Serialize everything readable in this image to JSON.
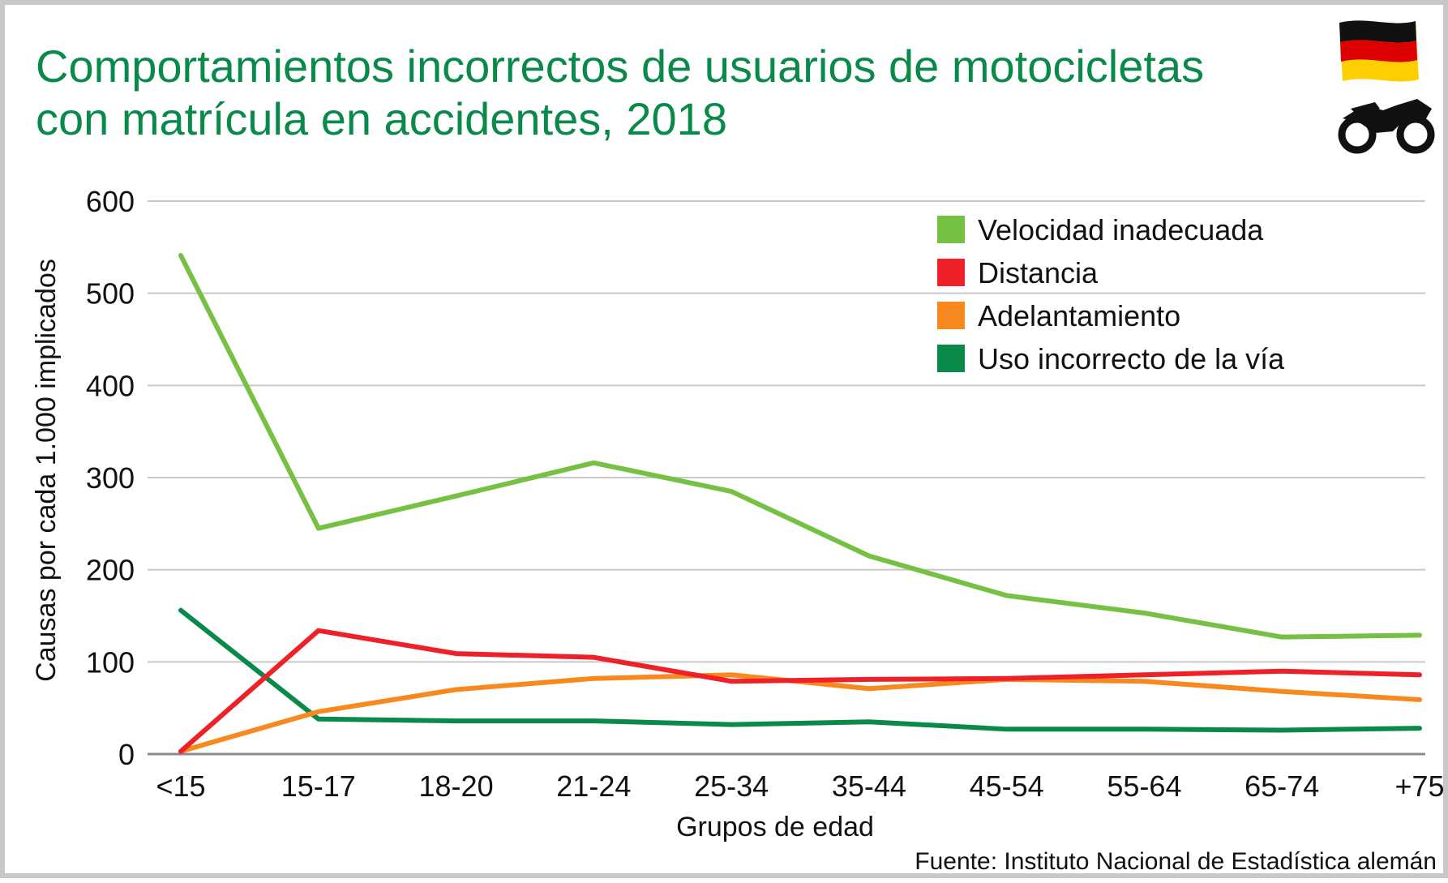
{
  "chart_data": {
    "type": "line",
    "title": "Comportamientos incorrectos de usuarios de motocicletas con matrícula en accidentes, 2018",
    "title_lines": [
      "Comportamientos incorrectos de usuarios de motocicletas",
      "con matrícula en accidentes, 2018"
    ],
    "xlabel": "Grupos de edad",
    "ylabel": "Causas por cada 1.000 implicados",
    "ylim": [
      0,
      600
    ],
    "yticks": [
      "0",
      "100",
      "200",
      "300",
      "400",
      "500",
      "600"
    ],
    "grid": true,
    "legend_position": "top-right",
    "categories": [
      "<15",
      "15-17",
      "18-20",
      "21-24",
      "25-34",
      "35-44",
      "45-54",
      "55-64",
      "65-74",
      "+75"
    ],
    "series": [
      {
        "name": "Velocidad inadecuada",
        "color": "#76c043",
        "values": [
          541,
          245,
          280,
          316,
          285,
          215,
          172,
          153,
          127,
          129
        ]
      },
      {
        "name": "Distancia",
        "color": "#ee2028",
        "values": [
          3,
          134,
          109,
          105,
          79,
          81,
          82,
          86,
          90,
          86
        ]
      },
      {
        "name": "Adelantamiento",
        "color": "#f7891f",
        "values": [
          3,
          46,
          70,
          82,
          86,
          71,
          81,
          79,
          68,
          59
        ]
      },
      {
        "name": "Uso incorrecto de la vía",
        "color": "#0a8a4a",
        "values": [
          156,
          38,
          36,
          36,
          32,
          35,
          27,
          27,
          26,
          28
        ]
      }
    ],
    "source": "Fuente: Instituto Nacional de Estadística alemán"
  },
  "icons": {
    "flag": "germany-flag-icon",
    "vehicle": "motorcycle-icon"
  },
  "colors": {
    "title": "#0a8a4a",
    "grid": "#c8c8c8",
    "frame": "#c8c8c8",
    "flag_black": "#111111",
    "flag_red": "#dd0000",
    "flag_gold": "#ffce00"
  }
}
